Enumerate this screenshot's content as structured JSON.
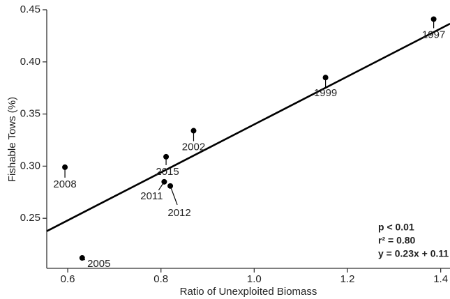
{
  "chart_data": {
    "type": "scatter",
    "x_label": "Ratio of Unexploited Biomass",
    "y_label": "Fishable Tows (%)",
    "labels": [
      "1997",
      "1999",
      "2002",
      "2015",
      "2011",
      "2012",
      "2008",
      "2005"
    ],
    "x": [
      1.385,
      1.153,
      0.87,
      0.811,
      0.807,
      0.82,
      0.594,
      0.631
    ],
    "y": [
      0.441,
      0.385,
      0.334,
      0.309,
      0.285,
      0.281,
      0.299,
      0.212
    ],
    "color": "#000000",
    "fit": {
      "slope": 0.23,
      "intercept": 0.11
    },
    "annotations": [
      "p < 0.01",
      "r² = 0.80",
      "y = 0.23x + 0.11"
    ],
    "xlim": [
      0.555,
      1.42
    ],
    "ylim": [
      0.202,
      0.45
    ],
    "xticks": [
      0.6,
      0.8,
      {
        "value": 1,
        "label": "1.0"
      },
      1.2,
      1.4
    ],
    "yticks": [
      0.25,
      {
        "value": 0.3,
        "label": "0.30"
      },
      0.35,
      {
        "value": 0.4,
        "label": "0.40"
      },
      0.45
    ]
  }
}
